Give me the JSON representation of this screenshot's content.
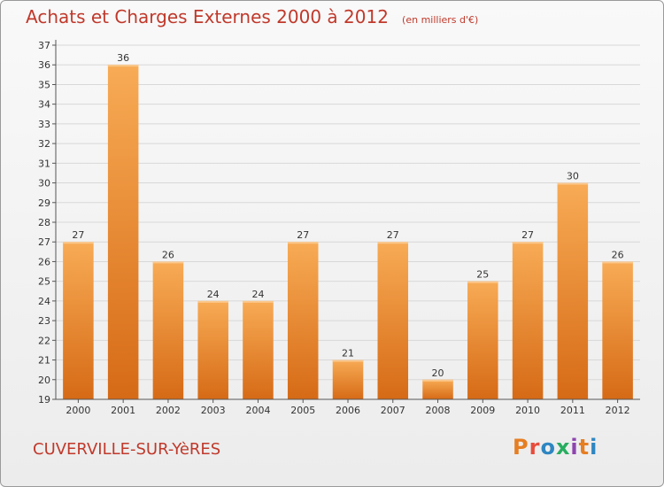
{
  "header": {
    "title": "Achats et Charges Externes 2000 à 2012",
    "subtitle": "(en milliers d'€)"
  },
  "footer": {
    "commune": "CUVERVILLE-SUR-YèRES",
    "logo_text": "Proxiti"
  },
  "colors": {
    "title": "#c0392b",
    "bar_light": "#f8ab55",
    "bar_dark": "#d66a16",
    "logo": [
      "#e67e22",
      "#e74c3c",
      "#2e86c1",
      "#27ae60",
      "#8e44ad",
      "#e67e22",
      "#2e86c1"
    ]
  },
  "chart_data": {
    "type": "bar",
    "title": "Achats et Charges Externes 2000 à 2012",
    "subtitle": "(en milliers d'€)",
    "categories": [
      "2000",
      "2001",
      "2002",
      "2003",
      "2004",
      "2005",
      "2006",
      "2007",
      "2008",
      "2009",
      "2010",
      "2011",
      "2012"
    ],
    "values": [
      27,
      36,
      26,
      24,
      24,
      27,
      21,
      27,
      20,
      25,
      27,
      30,
      26
    ],
    "ylim": [
      19,
      37
    ],
    "yticks": [
      19,
      20,
      21,
      22,
      23,
      24,
      25,
      26,
      27,
      28,
      29,
      30,
      31,
      32,
      33,
      34,
      35,
      36,
      37
    ],
    "grid": true,
    "legend": "none"
  }
}
